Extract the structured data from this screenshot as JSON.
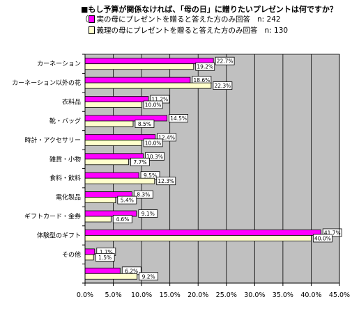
{
  "chart_data": {
    "type": "bar",
    "orientation": "horizontal",
    "title": "■もし予算が関係なければ、「母の日」に贈りたいプレゼントは何ですか？",
    "categories": [
      "カーネーション",
      "カーネーション以外の花",
      "衣料品",
      "靴・バッグ",
      "時計・アクセサリー",
      "雑貨・小物",
      "食料・飲料",
      "電化製品",
      "ギフトカード・金券",
      "体験型のギフト",
      "その他",
      ""
    ],
    "series": [
      {
        "name": "実の母にプレゼントを贈ると答えた方のみ回答",
        "n_label": "n: 242",
        "color": "#ff00ff",
        "values": [
          22.7,
          18.6,
          11.2,
          14.5,
          12.4,
          10.3,
          9.5,
          8.3,
          9.1,
          41.7,
          1.7,
          6.2
        ]
      },
      {
        "name": "義理の母にプレゼントを贈ると答えた方のみ回答",
        "n_label": "n: 130",
        "color": "#ffffcc",
        "values": [
          19.2,
          22.3,
          10.0,
          8.5,
          10.0,
          7.7,
          12.3,
          5.4,
          4.6,
          40.0,
          1.5,
          9.2
        ]
      }
    ],
    "legend_prefix": "（",
    "xlim": [
      0,
      45
    ],
    "xticks": [
      "0.0%",
      "5.0%",
      "10.0%",
      "15.0%",
      "20.0%",
      "25.0%",
      "30.0%",
      "35.0%",
      "40.0%",
      "45.0%"
    ],
    "data_labels": [
      [
        "22.7%",
        "18.6%",
        "11.2%",
        "14.5%",
        "12.4%",
        "10.3%",
        "9.5%",
        "8.3%",
        "9.1%",
        "41.7%",
        "1.7%",
        "6.2%"
      ],
      [
        "19.2%",
        "22.3%",
        "10.0%",
        "8.5%",
        "10.0%",
        "7.7%",
        "12.3%",
        "5.4%",
        "4.6%",
        "40.0%",
        "1.5%",
        "9.2%"
      ]
    ],
    "plot_background": "#c0c0c0",
    "grid": true,
    "legend_position": "top-left"
  }
}
